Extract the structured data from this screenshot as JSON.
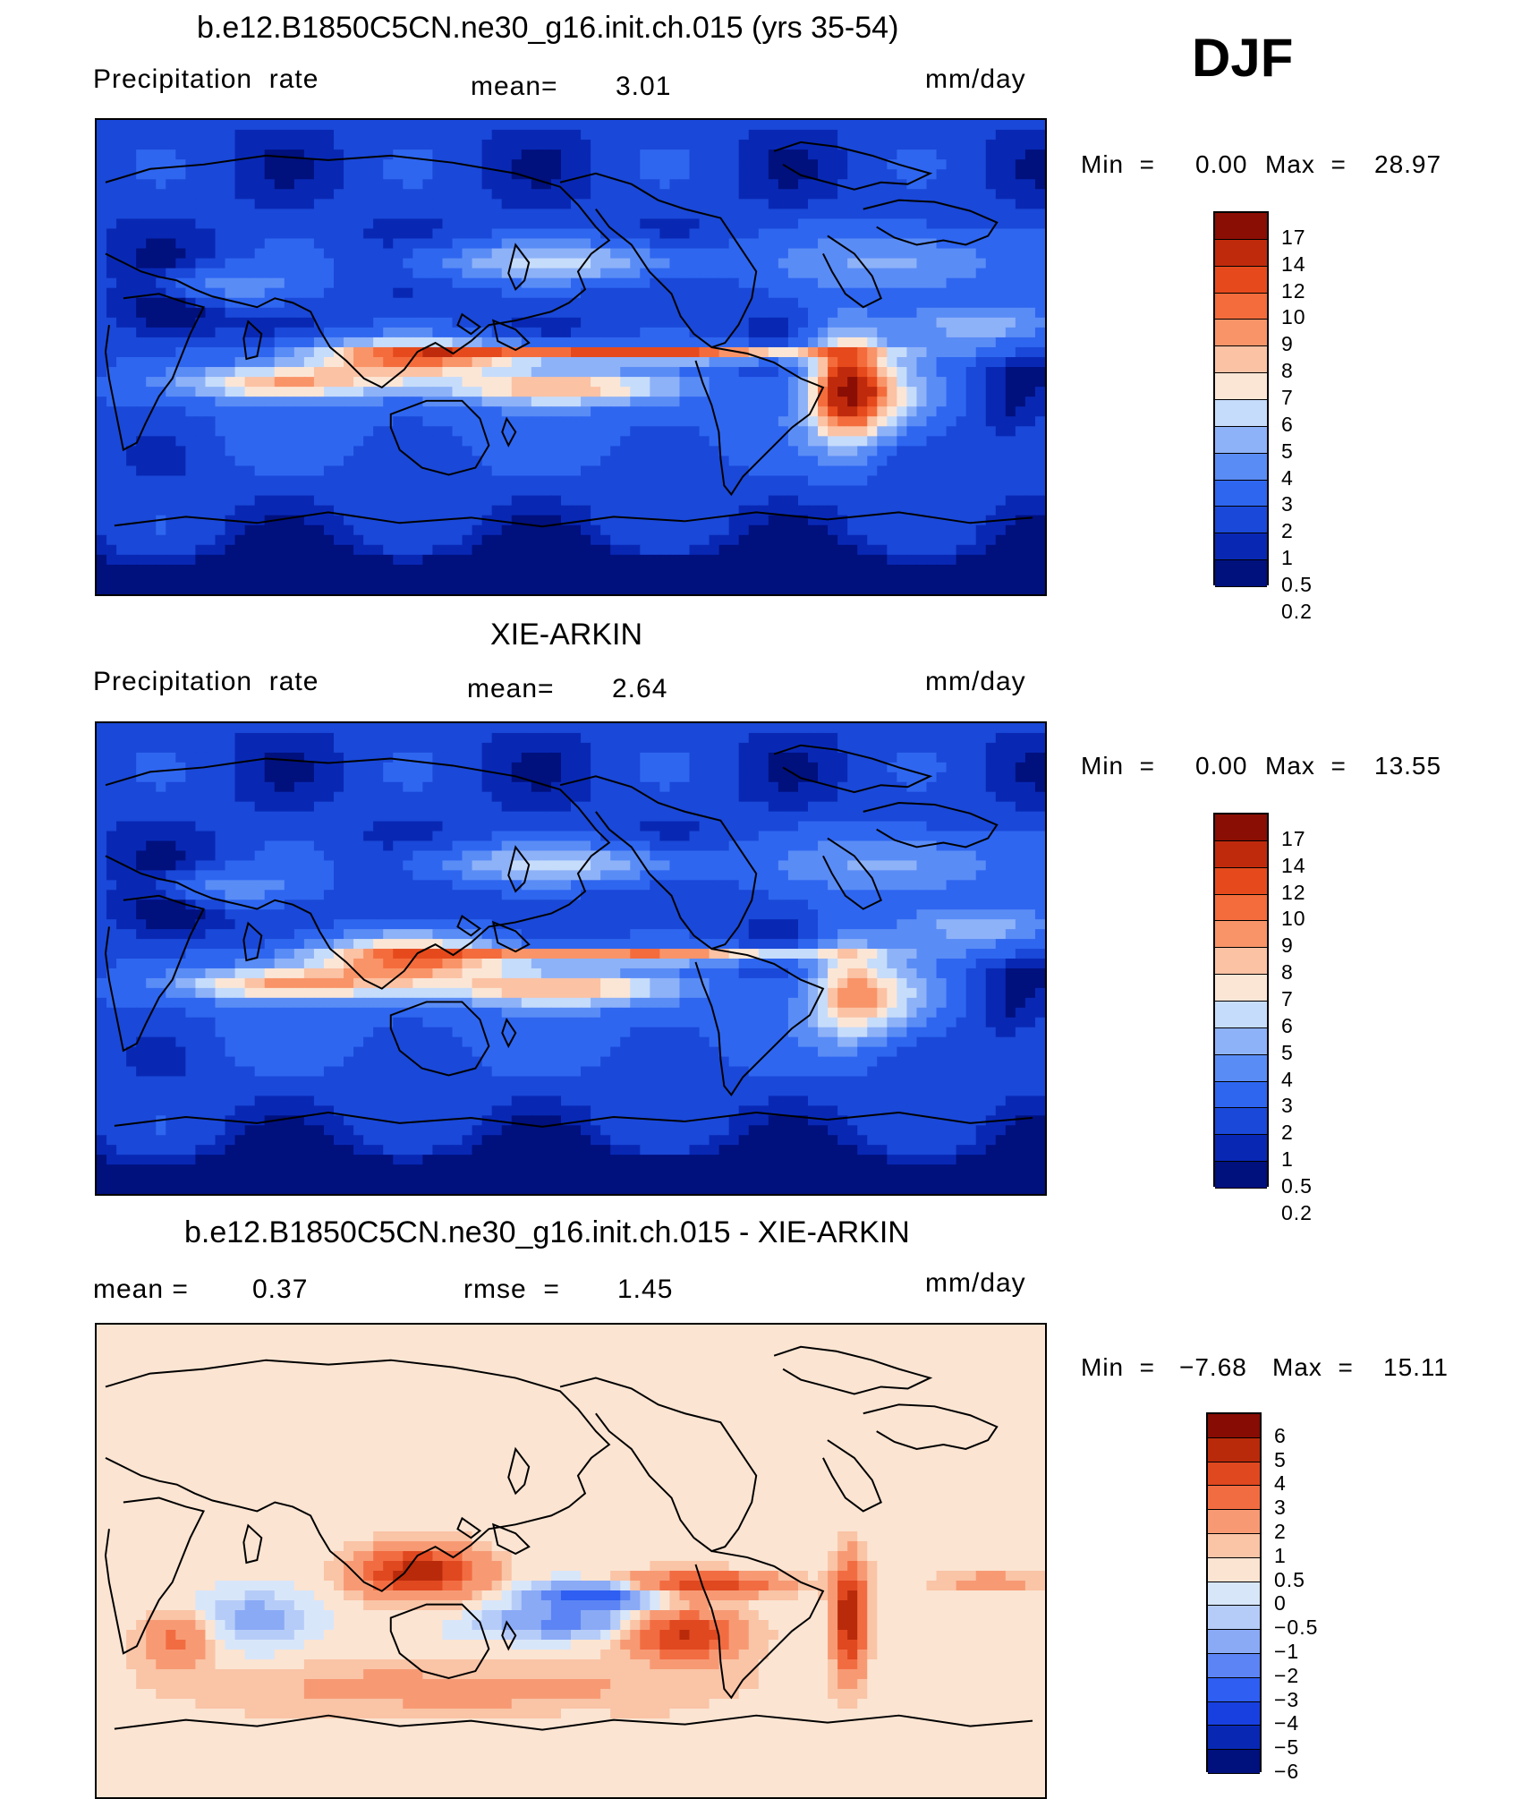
{
  "colors": {
    "panel1": [
      "#00107d",
      "#0828b4",
      "#1a48d8",
      "#2e66f0",
      "#5a8cf6",
      "#8eb2f8",
      "#c6dcfb",
      "#fbe6d6",
      "#fbc2a4",
      "#f99468",
      "#f46c3c",
      "#e64a1c",
      "#c02a0c",
      "#8a0e04"
    ],
    "panel2": [
      "#00107d",
      "#0828b4",
      "#1a48d8",
      "#2e66f0",
      "#5a8cf6",
      "#8eb2f8",
      "#c6dcfb",
      "#fbe6d6",
      "#fbc2a4",
      "#f99468",
      "#f46c3c",
      "#e64a1c",
      "#c02a0c",
      "#8a0e04"
    ],
    "diff": [
      "#00107d",
      "#0828b4",
      "#1840e0",
      "#2e5ef2",
      "#5c84f4",
      "#8aaaf6",
      "#b6ccf8",
      "#d8e6fa",
      "#fbe4d2",
      "#fac4a6",
      "#f79a74",
      "#f26c42",
      "#e04820",
      "#b82a0a",
      "#860c04"
    ]
  },
  "season_label": "DJF",
  "panel1": {
    "title": "b.e12.B1850C5CN.ne30_g16.init.ch.015 (yrs 35-54)",
    "left_label": "Precipitation  rate",
    "mean_label": "mean=",
    "mean_value": "3.01",
    "units": "mm/day",
    "min_label": "Min  =",
    "min_value": "0.00",
    "max_label": "Max  =",
    "max_value": "28.97",
    "ticks": [
      "17",
      "14",
      "12",
      "10",
      "9",
      "8",
      "7",
      "6",
      "5",
      "4",
      "3",
      "2",
      "1",
      "0.5",
      "0.2"
    ]
  },
  "panel2": {
    "title": "XIE-ARKIN",
    "left_label": "Precipitation  rate",
    "mean_label": "mean=",
    "mean_value": "2.64",
    "units": "mm/day",
    "min_label": "Min  =",
    "min_value": "0.00",
    "max_label": "Max  =",
    "max_value": "13.55",
    "ticks": [
      "17",
      "14",
      "12",
      "10",
      "9",
      "8",
      "7",
      "6",
      "5",
      "4",
      "3",
      "2",
      "1",
      "0.5",
      "0.2"
    ]
  },
  "panel3": {
    "title": "b.e12.B1850C5CN.ne30_g16.init.ch.015 - XIE-ARKIN",
    "mean_label": "mean =",
    "mean_value": "0.37",
    "rmse_label": "rmse  =",
    "rmse_value": "1.45",
    "units": "mm/day",
    "min_label": "Min  =",
    "min_value": "−7.68",
    "max_label": "Max  =",
    "max_value": "15.11",
    "ticks": [
      "6",
      "5",
      "4",
      "3",
      "2",
      "1",
      "0.5",
      "0",
      "−0.5",
      "−1",
      "−2",
      "−3",
      "−4",
      "−5",
      "−6"
    ]
  }
}
